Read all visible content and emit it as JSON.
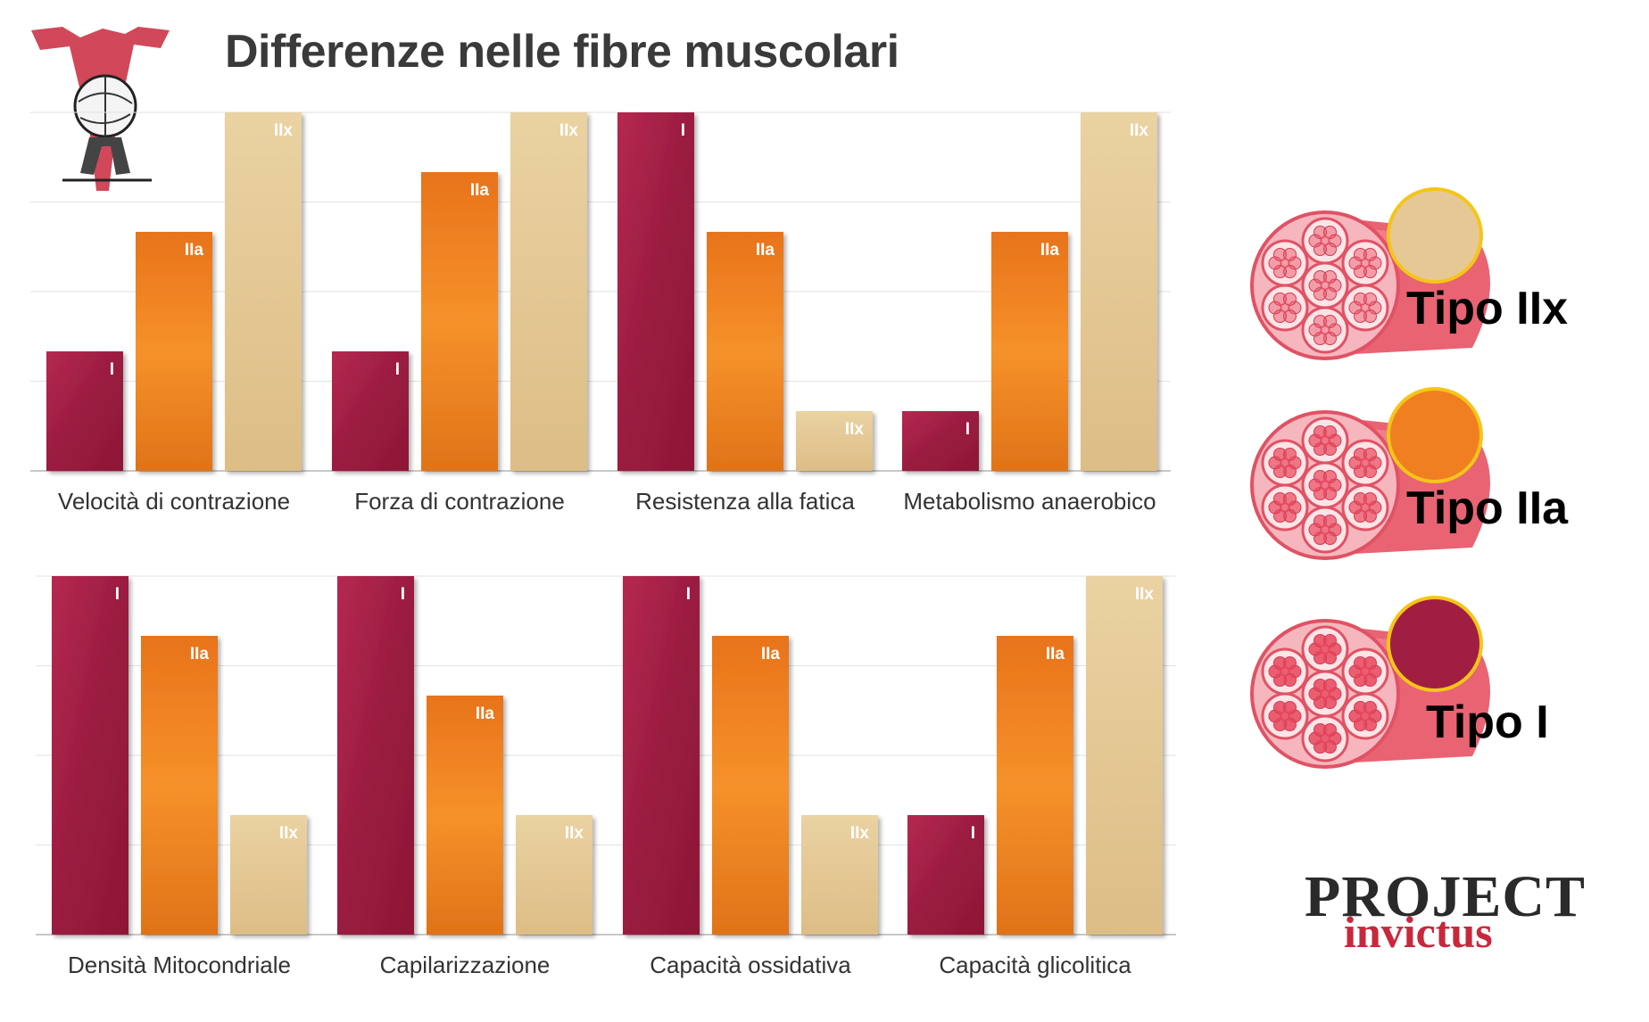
{
  "title": "Differenze nelle fibre muscolari",
  "colors": {
    "tipo_I": "#a11e43",
    "tipo_IIa": "#f07f22",
    "tipo_IIx": "#e6c896"
  },
  "chart_data": [
    {
      "type": "bar",
      "title": "",
      "xlabel": "Velocità di contrazione",
      "categories": [
        "I",
        "IIa",
        "IIx"
      ],
      "values": [
        1,
        2,
        3
      ],
      "ylim": [
        0,
        3
      ],
      "grid": true
    },
    {
      "type": "bar",
      "title": "",
      "xlabel": "Forza di contrazione",
      "categories": [
        "I",
        "IIa",
        "IIx"
      ],
      "values": [
        1,
        2.5,
        3
      ],
      "ylim": [
        0,
        3
      ],
      "grid": true
    },
    {
      "type": "bar",
      "title": "",
      "xlabel": "Resistenza alla fatica",
      "categories": [
        "I",
        "IIa",
        "IIx"
      ],
      "values": [
        3,
        2,
        0.5
      ],
      "ylim": [
        0,
        3
      ],
      "grid": true
    },
    {
      "type": "bar",
      "title": "",
      "xlabel": "Metabolismo anaerobico",
      "categories": [
        "I",
        "IIa",
        "IIx"
      ],
      "values": [
        0.5,
        2,
        3
      ],
      "ylim": [
        0,
        3
      ],
      "grid": true
    },
    {
      "type": "bar",
      "title": "",
      "xlabel": "Densità Mitocondriale",
      "categories": [
        "I",
        "IIa",
        "IIx"
      ],
      "values": [
        3,
        2.5,
        1
      ],
      "ylim": [
        0,
        3
      ],
      "grid": true
    },
    {
      "type": "bar",
      "title": "",
      "xlabel": "Capilarizzazione",
      "categories": [
        "I",
        "IIa",
        "IIx"
      ],
      "values": [
        3,
        2,
        1
      ],
      "ylim": [
        0,
        3
      ],
      "grid": true
    },
    {
      "type": "bar",
      "title": "",
      "xlabel": "Capacità ossidativa",
      "categories": [
        "I",
        "IIa",
        "IIx"
      ],
      "values": [
        3,
        2.5,
        1
      ],
      "ylim": [
        0,
        3
      ],
      "grid": true
    },
    {
      "type": "bar",
      "title": "",
      "xlabel": "Capacità glicolitica",
      "categories": [
        "I",
        "IIa",
        "IIx"
      ],
      "values": [
        1,
        2.5,
        3
      ],
      "ylim": [
        0,
        3
      ],
      "grid": true
    }
  ],
  "legend": [
    {
      "label": "Tipo IIx",
      "color": "#e6c896"
    },
    {
      "label": "Tipo IIa",
      "color": "#f07f22"
    },
    {
      "label": "Tipo I",
      "color": "#a11e43"
    }
  ],
  "logo_bottom": {
    "line1": "PROJECT",
    "line2": "invictus"
  }
}
